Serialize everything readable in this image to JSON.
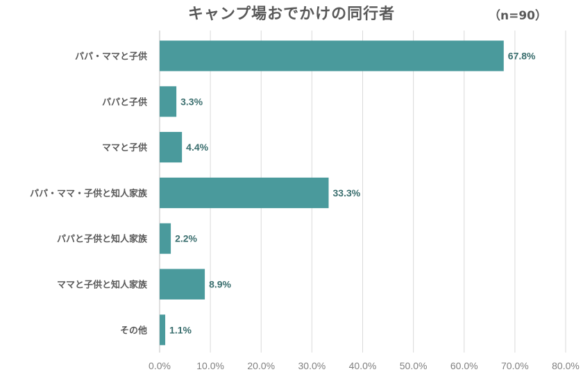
{
  "chart_data": {
    "type": "bar",
    "orientation": "horizontal",
    "title": "キャンプ場おでかけの同行者",
    "subtitle": "（n=90）",
    "categories": [
      "パパ・ママと子供",
      "パパと子供",
      "ママと子供",
      "パパ・ママ・子供と知人家族",
      "パパと子供と知人家族",
      "ママと子供と知人家族",
      "その他"
    ],
    "values": [
      67.8,
      3.3,
      4.4,
      33.3,
      2.2,
      8.9,
      1.1
    ],
    "data_labels": [
      "67.8%",
      "3.3%",
      "4.4%",
      "33.3%",
      "2.2%",
      "8.9%",
      "1.1%"
    ],
    "xlim": [
      0,
      80
    ],
    "xticks": [
      0,
      10,
      20,
      30,
      40,
      50,
      60,
      70,
      80
    ],
    "xtick_labels": [
      "0.0%",
      "10.0%",
      "20.0%",
      "30.0%",
      "40.0%",
      "50.0%",
      "60.0%",
      "70.0%",
      "80.0%"
    ],
    "grid": true,
    "colors": {
      "bar": "#4a9a9c",
      "data_label": "#3a6e6e",
      "grid": "#d9d9d9",
      "text": "#595959",
      "tick": "#7f7f7f"
    }
  }
}
